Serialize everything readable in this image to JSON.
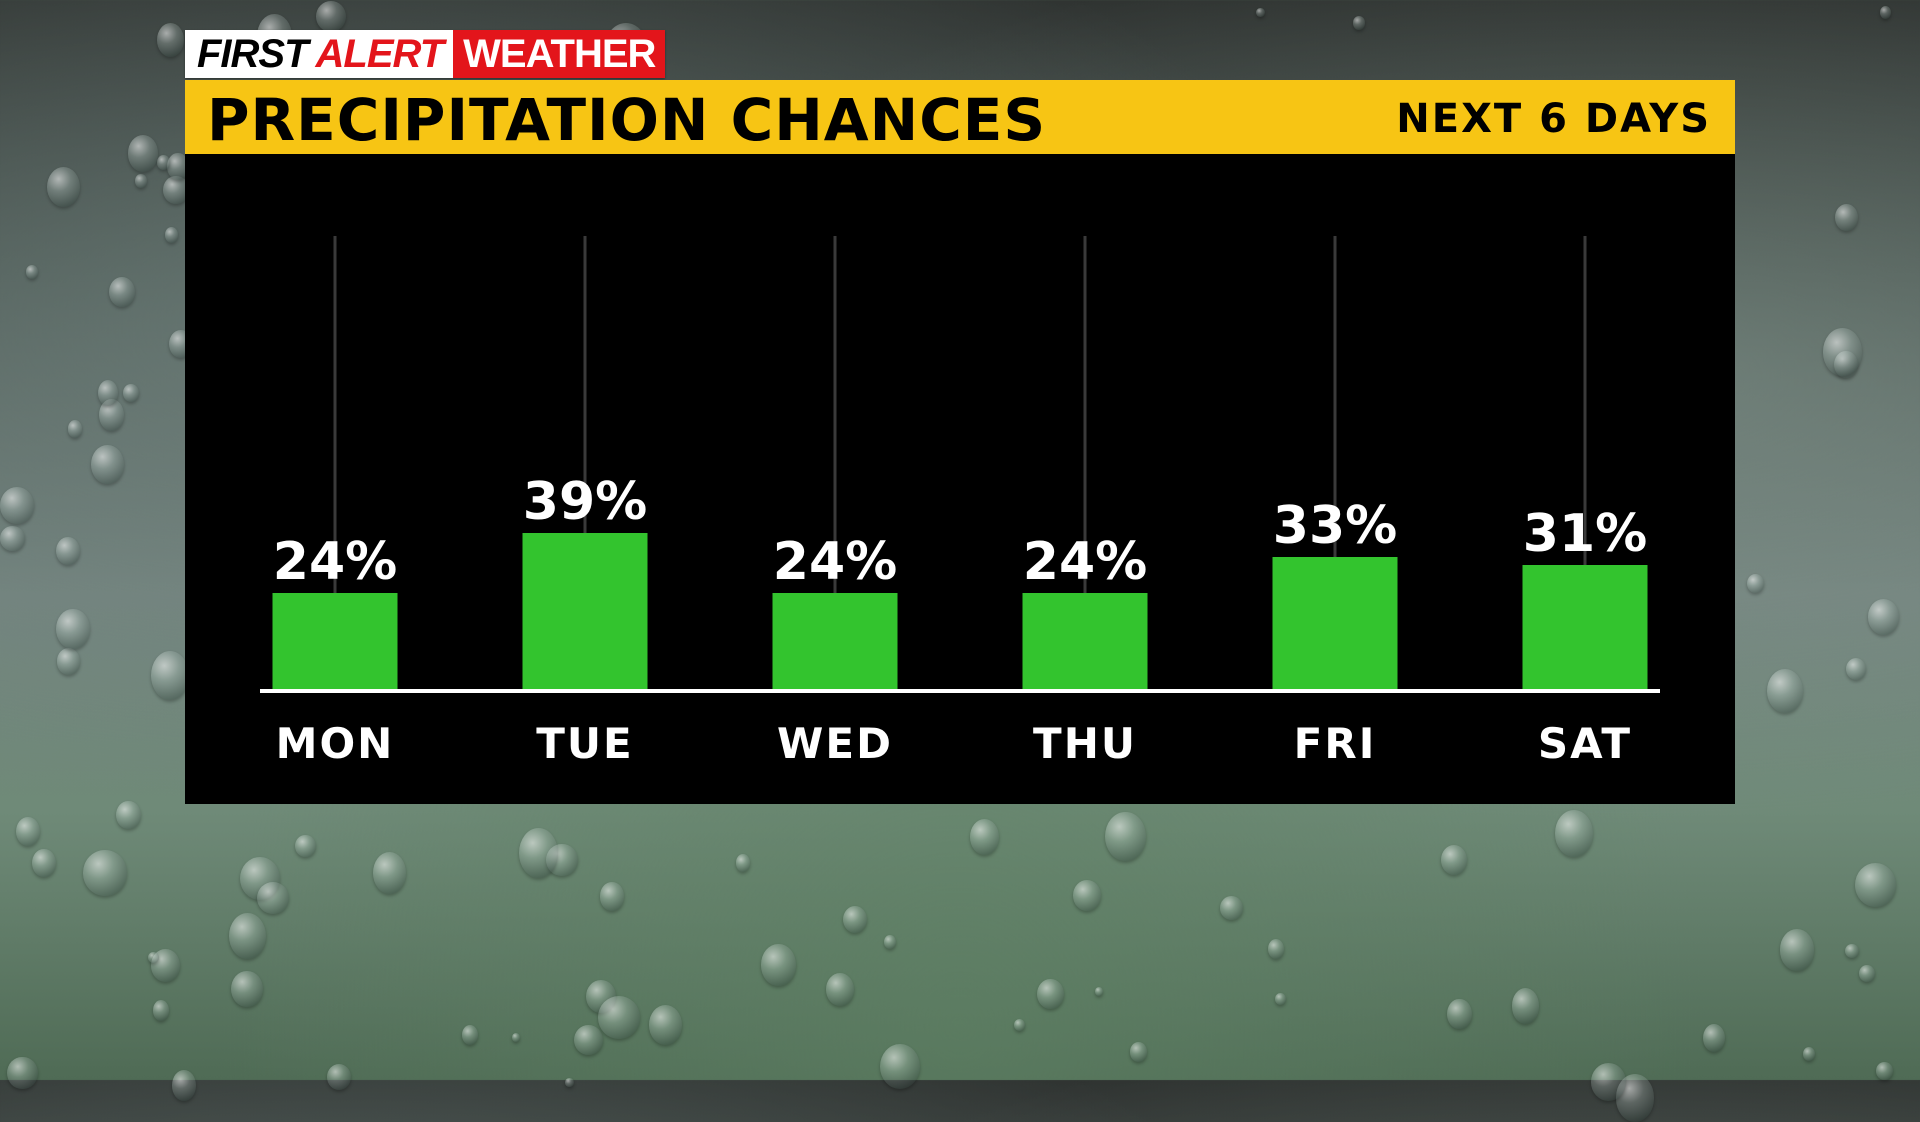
{
  "brand": {
    "first": "FIRST",
    "alert": "ALERT",
    "weather": "WEATHER"
  },
  "header": {
    "title": "PRECIPITATION CHANCES",
    "subtitle": "NEXT 6 DAYS"
  },
  "colors": {
    "bar": "#33c42e",
    "title_bar": "#f7c514",
    "brand_red": "#e3151b",
    "panel": "#000000"
  },
  "chart_data": {
    "type": "bar",
    "title": "PRECIPITATION CHANCES",
    "subtitle": "NEXT 6 DAYS",
    "categories": [
      "MON",
      "TUE",
      "WED",
      "THU",
      "FRI",
      "SAT"
    ],
    "values": [
      24,
      39,
      24,
      24,
      33,
      31
    ],
    "value_labels": [
      "24%",
      "39%",
      "24%",
      "24%",
      "33%",
      "31%"
    ],
    "unit": "%",
    "ylim": [
      0,
      100
    ],
    "grid": false
  }
}
